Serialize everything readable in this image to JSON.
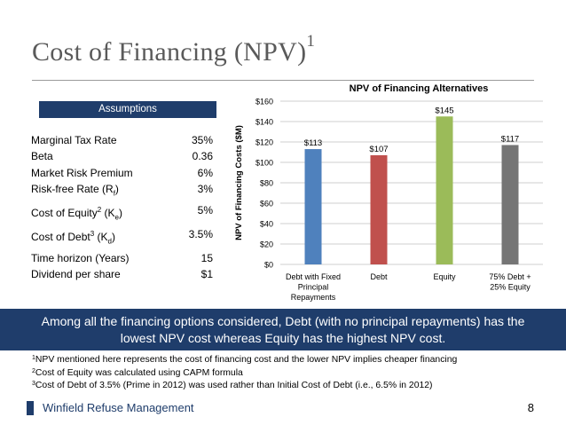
{
  "header": {
    "title": "Cost of Financing (NPV)",
    "title_sup": "1"
  },
  "assumptions": {
    "heading": "Assumptions",
    "items": [
      {
        "label_main": "Marginal Tax Rate",
        "value": "35%"
      },
      {
        "label_main": "Beta",
        "value": "0.36"
      },
      {
        "label_main": "Market Risk Premium",
        "value": "6%"
      },
      {
        "label_main": "Risk-free Rate (R",
        "label_sub": "f",
        "label_tail": ")",
        "value": "3%"
      },
      {
        "label_main": "Cost of Equity",
        "label_sup": "2",
        "label_mid": " (K",
        "label_sub": "e",
        "label_tail": ")",
        "value": "5%"
      },
      {
        "label_main": "Cost of Debt",
        "label_sup": "3",
        "label_mid": " (K",
        "label_sub": "d",
        "label_tail": ")",
        "value": "3.5%"
      },
      {
        "label_main": "Time horizon (Years)",
        "value": "15"
      },
      {
        "label_main": "Dividend per share",
        "value": "$1"
      }
    ]
  },
  "chart_data": {
    "type": "bar",
    "title": "NPV of Financing Alternatives",
    "ylabel": "NPV of Financing Costs ($M)",
    "xlabel": "",
    "categories": [
      [
        "Debt with Fixed",
        "Principal",
        "Repayments"
      ],
      [
        "Debt"
      ],
      [
        "Equity"
      ],
      [
        "75% Debt +",
        "25% Equity"
      ]
    ],
    "values": [
      113,
      107,
      145,
      117
    ],
    "data_labels": [
      "$113",
      "$107",
      "$145",
      "$117"
    ],
    "colors": [
      "#4f81bd",
      "#c0504d",
      "#9bbb59",
      "#757575"
    ],
    "ylim": [
      0,
      160
    ],
    "yticks": [
      0,
      20,
      40,
      60,
      80,
      100,
      120,
      140,
      160
    ],
    "ytick_labels": [
      "$0",
      "$20",
      "$40",
      "$60",
      "$80",
      "$100",
      "$120",
      "$140",
      "$160"
    ],
    "grid": true,
    "legend": "none"
  },
  "summary": {
    "line1": "Among all the financing options considered, Debt (with no principal repayments) has the",
    "line2": "lowest NPV cost whereas Equity has the highest NPV cost."
  },
  "footnotes": [
    {
      "num": "1",
      "text": "NPV mentioned here represents the cost of financing cost and the lower NPV implies cheaper financing"
    },
    {
      "num": "2",
      "text": "Cost of Equity was calculated using CAPM formula"
    },
    {
      "num": "3",
      "text": "Cost of Debt of 3.5% (Prime in 2012) was used rather than Initial Cost of Debt (i.e., 6.5% in 2012)"
    }
  ],
  "footer": {
    "company": "Winfield Refuse Management",
    "page_number": "8",
    "accent_color": "#1f3d6b"
  }
}
